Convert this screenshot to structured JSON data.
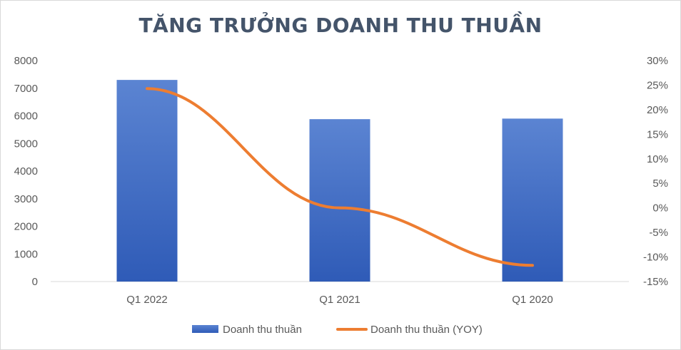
{
  "chart_data": {
    "type": "bar",
    "title": "TĂNG TRƯỞNG DOANH THU THUẦN",
    "categories": [
      "Q1 2022",
      "Q1 2021",
      "Q1 2020"
    ],
    "series": [
      {
        "name": "Doanh thu thuần",
        "type": "bar",
        "axis": "left",
        "values": [
          7300,
          5880,
          5900
        ],
        "color": "#4472c4"
      },
      {
        "name": "Doanh thu thuần (YOY)",
        "type": "line",
        "axis": "right",
        "values": [
          24.3,
          0,
          -11.7
        ],
        "color": "#ed7d31"
      }
    ],
    "y_left": {
      "min": 0,
      "max": 8000,
      "ticks": [
        "0",
        "1000",
        "2000",
        "3000",
        "4000",
        "5000",
        "6000",
        "7000",
        "8000"
      ]
    },
    "y_right": {
      "min": -15,
      "max": 30,
      "ticks": [
        "-15%",
        "-10%",
        "-5%",
        "0%",
        "5%",
        "10%",
        "15%",
        "20%",
        "25%",
        "30%"
      ]
    },
    "grid": false,
    "legend_position": "bottom"
  }
}
